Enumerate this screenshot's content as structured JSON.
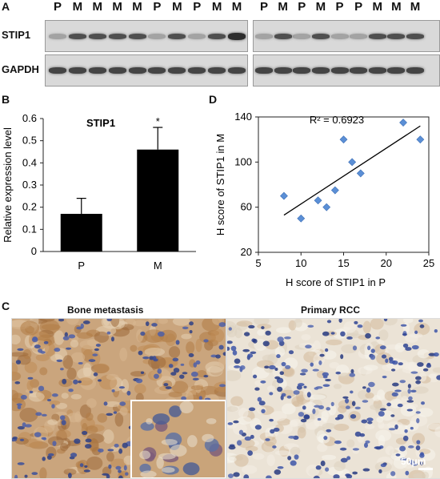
{
  "panel_a": {
    "letter": "A",
    "lanes_left": [
      "P",
      "M",
      "M",
      "M",
      "M",
      "P",
      "M",
      "P",
      "M",
      "M"
    ],
    "lanes_right": [
      "P",
      "M",
      "P",
      "M",
      "P",
      "P",
      "M",
      "M",
      "M"
    ],
    "row1_label": "STIP1",
    "row2_label": "GAPDH"
  },
  "panel_b": {
    "letter": "B"
  },
  "panel_d": {
    "letter": "D",
    "annotation": "R² = 0.6923"
  },
  "panel_c": {
    "letter": "C",
    "left_title": "Bone metastasis",
    "right_title": "Primary RCC",
    "scale_bar": "50μm"
  },
  "chart_data": [
    {
      "type": "bar",
      "title": "STIP1",
      "ylabel": "Relative expression level",
      "categories": [
        "P",
        "M"
      ],
      "values": [
        0.17,
        0.46
      ],
      "errors": [
        0.07,
        0.1
      ],
      "significance": [
        "",
        "*"
      ],
      "ylim": [
        0,
        0.6
      ],
      "yticks": [
        0,
        0.1,
        0.2,
        0.3,
        0.4,
        0.5,
        0.6
      ],
      "ytick_labels": [
        "0",
        "0.1",
        "0.2",
        "0.3",
        "0.4",
        "0.5",
        "0.6"
      ]
    },
    {
      "type": "scatter",
      "xlabel": "H score of STIP1 in P",
      "ylabel": "H score of STIP1 in M",
      "xlim": [
        5,
        25
      ],
      "ylim": [
        20,
        140
      ],
      "xticks": [
        5,
        10,
        15,
        20,
        25
      ],
      "yticks": [
        20,
        60,
        100,
        140
      ],
      "points": [
        {
          "x": 8,
          "y": 70
        },
        {
          "x": 10,
          "y": 50
        },
        {
          "x": 12,
          "y": 66
        },
        {
          "x": 13,
          "y": 60
        },
        {
          "x": 14,
          "y": 75
        },
        {
          "x": 15,
          "y": 120
        },
        {
          "x": 16,
          "y": 100
        },
        {
          "x": 17,
          "y": 90
        },
        {
          "x": 22,
          "y": 135
        },
        {
          "x": 24,
          "y": 120
        }
      ],
      "trendline": {
        "x": [
          8,
          24
        ],
        "y": [
          53,
          132
        ]
      },
      "marker_color": "#5b8fd6"
    }
  ]
}
